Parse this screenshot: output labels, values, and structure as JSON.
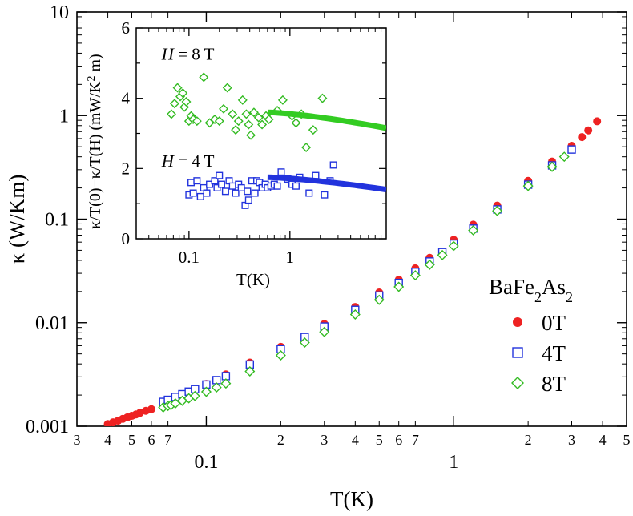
{
  "chart_data": [
    {
      "type": "scatter",
      "xlabel": "T(K)",
      "ylabel": "κ (W/Km)",
      "xscale": "log",
      "yscale": "log",
      "xlim": [
        0.03,
        5
      ],
      "ylim": [
        0.001,
        10
      ],
      "y_ticks": [
        {
          "value": 0.001,
          "label": "0.001"
        },
        {
          "value": 0.01,
          "label": "0.01"
        },
        {
          "value": 0.1,
          "label": "0.1"
        },
        {
          "value": 1,
          "label": "1"
        },
        {
          "value": 10,
          "label": "10"
        }
      ],
      "x_major_ticks": [
        {
          "value": 0.1,
          "label": "0.1"
        },
        {
          "value": 1,
          "label": "1"
        }
      ],
      "x_minor_ticks": [
        {
          "value": 0.03,
          "label": "3"
        },
        {
          "value": 0.04,
          "label": "4"
        },
        {
          "value": 0.05,
          "label": "5"
        },
        {
          "value": 0.06,
          "label": "6"
        },
        {
          "value": 0.07,
          "label": "7"
        },
        {
          "value": 0.2,
          "label": "2"
        },
        {
          "value": 0.3,
          "label": "3"
        },
        {
          "value": 0.4,
          "label": "4"
        },
        {
          "value": 0.5,
          "label": "5"
        },
        {
          "value": 0.6,
          "label": "6"
        },
        {
          "value": 0.7,
          "label": "7"
        },
        {
          "value": 2,
          "label": "2"
        },
        {
          "value": 3,
          "label": "3"
        },
        {
          "value": 4,
          "label": "4"
        },
        {
          "value": 5,
          "label": "5"
        }
      ],
      "legend": {
        "title": "BaFe2As2",
        "title_parts": [
          {
            "text": "BaFe",
            "sub": false
          },
          {
            "text": "2",
            "sub": true
          },
          {
            "text": "As",
            "sub": false
          },
          {
            "text": "2",
            "sub": true
          }
        ],
        "placement": "bottom-right"
      },
      "series": [
        {
          "name": "0T",
          "marker": "filled-circle",
          "color": "#ee2222",
          "points": [
            [
              0.04,
              0.00105
            ],
            [
              0.042,
              0.00109
            ],
            [
              0.044,
              0.00113
            ],
            [
              0.046,
              0.00118
            ],
            [
              0.048,
              0.00122
            ],
            [
              0.05,
              0.00126
            ],
            [
              0.052,
              0.0013
            ],
            [
              0.054,
              0.00135
            ],
            [
              0.057,
              0.00141
            ],
            [
              0.06,
              0.00146
            ],
            [
              0.067,
              0.0016
            ],
            [
              0.07,
              0.00175
            ],
            [
              0.075,
              0.00188
            ],
            [
              0.08,
              0.002
            ],
            [
              0.09,
              0.00228
            ],
            [
              0.1,
              0.00256
            ],
            [
              0.12,
              0.00317
            ],
            [
              0.15,
              0.00412
            ],
            [
              0.2,
              0.00585
            ],
            [
              0.3,
              0.00972
            ],
            [
              0.4,
              0.0142
            ],
            [
              0.5,
              0.0196
            ],
            [
              0.6,
              0.026
            ],
            [
              0.7,
              0.0335
            ],
            [
              0.8,
              0.0423
            ],
            [
              1.0,
              0.0631
            ],
            [
              1.2,
              0.0884
            ],
            [
              1.5,
              0.135
            ],
            [
              2.0,
              0.234
            ],
            [
              2.5,
              0.36
            ],
            [
              3.0,
              0.51
            ],
            [
              3.3,
              0.62
            ],
            [
              3.5,
              0.72
            ],
            [
              3.8,
              0.88
            ]
          ]
        },
        {
          "name": "4T",
          "marker": "open-square",
          "color": "#2233dd",
          "points": [
            [
              0.067,
              0.00172
            ],
            [
              0.07,
              0.0018
            ],
            [
              0.075,
              0.00192
            ],
            [
              0.08,
              0.00204
            ],
            [
              0.085,
              0.00216
            ],
            [
              0.09,
              0.00228
            ],
            [
              0.1,
              0.00253
            ],
            [
              0.11,
              0.00279
            ],
            [
              0.12,
              0.00305
            ],
            [
              0.15,
              0.00395
            ],
            [
              0.2,
              0.00555
            ],
            [
              0.25,
              0.00727
            ],
            [
              0.3,
              0.00918
            ],
            [
              0.4,
              0.0133
            ],
            [
              0.5,
              0.0183
            ],
            [
              0.6,
              0.0242
            ],
            [
              0.7,
              0.031
            ],
            [
              0.8,
              0.039
            ],
            [
              0.9,
              0.048
            ],
            [
              1.0,
              0.058
            ],
            [
              1.2,
              0.081
            ],
            [
              1.5,
              0.124
            ],
            [
              2.0,
              0.215
            ],
            [
              2.5,
              0.33
            ],
            [
              3.0,
              0.47
            ]
          ]
        },
        {
          "name": "8T",
          "marker": "open-diamond",
          "color": "#33bb22",
          "points": [
            [
              0.067,
              0.00152
            ],
            [
              0.07,
              0.00157
            ],
            [
              0.072,
              0.0016
            ],
            [
              0.075,
              0.00166
            ],
            [
              0.08,
              0.00176
            ],
            [
              0.085,
              0.00186
            ],
            [
              0.09,
              0.00196
            ],
            [
              0.1,
              0.00215
            ],
            [
              0.11,
              0.00237
            ],
            [
              0.12,
              0.00259
            ],
            [
              0.15,
              0.00339
            ],
            [
              0.2,
              0.00484
            ],
            [
              0.25,
              0.00643
            ],
            [
              0.3,
              0.00815
            ],
            [
              0.4,
              0.012
            ],
            [
              0.5,
              0.0166
            ],
            [
              0.6,
              0.0222
            ],
            [
              0.7,
              0.0287
            ],
            [
              0.8,
              0.0363
            ],
            [
              0.9,
              0.045
            ],
            [
              1.0,
              0.055
            ],
            [
              1.2,
              0.078
            ],
            [
              1.5,
              0.12
            ],
            [
              2.0,
              0.209
            ],
            [
              2.5,
              0.32
            ],
            [
              2.8,
              0.4
            ]
          ]
        }
      ]
    },
    {
      "type": "scatter",
      "inset": true,
      "placement": "top-left",
      "xlabel": "T(K)",
      "ylabel_parts": [
        {
          "text": "κ/T(0)−κ/T(H) (mW/K",
          "sup": false
        },
        {
          "text": "2",
          "sup": true
        },
        {
          "text": " m)",
          "sup": false
        }
      ],
      "xscale": "log",
      "xlim": [
        0.03,
        9
      ],
      "ylim": [
        0,
        6
      ],
      "x_ticks": [
        {
          "value": 0.1,
          "label": "0.1"
        },
        {
          "value": 1,
          "label": "1"
        }
      ],
      "y_ticks": [
        {
          "value": 0,
          "label": "0"
        },
        {
          "value": 2,
          "label": "2"
        },
        {
          "value": 4,
          "label": "4"
        },
        {
          "value": 6,
          "label": "6"
        }
      ],
      "annotations": [
        {
          "field": "H",
          "text": " = 8 T",
          "x": 0.04,
          "y": 5.1
        },
        {
          "field": "H",
          "text": " = 4 T",
          "x": 0.04,
          "y": 2.05
        }
      ],
      "series": [
        {
          "marker": "open-diamond",
          "color": "#33bb22",
          "points": [
            [
              0.067,
              3.55
            ],
            [
              0.072,
              3.85
            ],
            [
              0.077,
              4.3
            ],
            [
              0.082,
              4.05
            ],
            [
              0.087,
              4.15
            ],
            [
              0.09,
              3.75
            ],
            [
              0.094,
              3.9
            ],
            [
              0.1,
              3.35
            ],
            [
              0.105,
              3.5
            ],
            [
              0.11,
              3.4
            ],
            [
              0.12,
              3.35
            ],
            [
              0.14,
              4.6
            ],
            [
              0.16,
              3.3
            ],
            [
              0.18,
              3.4
            ],
            [
              0.2,
              3.35
            ],
            [
              0.22,
              3.7
            ],
            [
              0.24,
              4.3
            ],
            [
              0.27,
              3.55
            ],
            [
              0.29,
              3.1
            ],
            [
              0.31,
              3.35
            ],
            [
              0.34,
              3.95
            ],
            [
              0.37,
              3.55
            ],
            [
              0.39,
              3.25
            ],
            [
              0.41,
              2.95
            ],
            [
              0.44,
              3.6
            ],
            [
              0.49,
              3.45
            ],
            [
              0.53,
              3.25
            ],
            [
              0.58,
              3.5
            ],
            [
              0.62,
              3.4
            ],
            [
              0.75,
              3.65
            ],
            [
              0.85,
              3.95
            ],
            [
              1.05,
              3.5
            ],
            [
              1.15,
              3.3
            ],
            [
              1.3,
              3.55
            ],
            [
              1.45,
              2.6
            ],
            [
              1.7,
              3.1
            ],
            [
              2.1,
              4.0
            ]
          ]
        },
        {
          "marker": "open-square",
          "color": "#2233dd",
          "points": [
            [
              0.1,
              1.25
            ],
            [
              0.105,
              1.6
            ],
            [
              0.11,
              1.3
            ],
            [
              0.12,
              1.65
            ],
            [
              0.13,
              1.2
            ],
            [
              0.14,
              1.45
            ],
            [
              0.15,
              1.3
            ],
            [
              0.16,
              1.55
            ],
            [
              0.18,
              1.65
            ],
            [
              0.19,
              1.45
            ],
            [
              0.2,
              1.8
            ],
            [
              0.21,
              1.55
            ],
            [
              0.23,
              1.35
            ],
            [
              0.25,
              1.65
            ],
            [
              0.27,
              1.5
            ],
            [
              0.29,
              1.3
            ],
            [
              0.31,
              1.55
            ],
            [
              0.33,
              1.45
            ],
            [
              0.36,
              0.95
            ],
            [
              0.38,
              1.35
            ],
            [
              0.39,
              1.1
            ],
            [
              0.42,
              1.65
            ],
            [
              0.45,
              1.3
            ],
            [
              0.47,
              1.65
            ],
            [
              0.5,
              1.6
            ],
            [
              0.53,
              1.45
            ],
            [
              0.57,
              1.55
            ],
            [
              0.6,
              1.45
            ],
            [
              0.65,
              1.5
            ],
            [
              0.7,
              1.55
            ],
            [
              0.75,
              1.5
            ],
            [
              0.82,
              1.9
            ],
            [
              0.95,
              1.7
            ],
            [
              1.05,
              1.55
            ],
            [
              1.15,
              1.5
            ],
            [
              1.25,
              1.75
            ],
            [
              1.55,
              1.3
            ],
            [
              1.8,
              1.8
            ],
            [
              2.2,
              1.25
            ],
            [
              2.5,
              1.65
            ],
            [
              2.7,
              2.1
            ]
          ]
        },
        {
          "type": "line",
          "color": "#33cc22",
          "x_range": [
            0.6,
            9
          ],
          "y_range": [
            3.6,
            3.15
          ]
        },
        {
          "type": "line",
          "color": "#2233dd",
          "x_range": [
            0.6,
            9
          ],
          "y_range": [
            1.75,
            1.4
          ]
        }
      ]
    }
  ]
}
